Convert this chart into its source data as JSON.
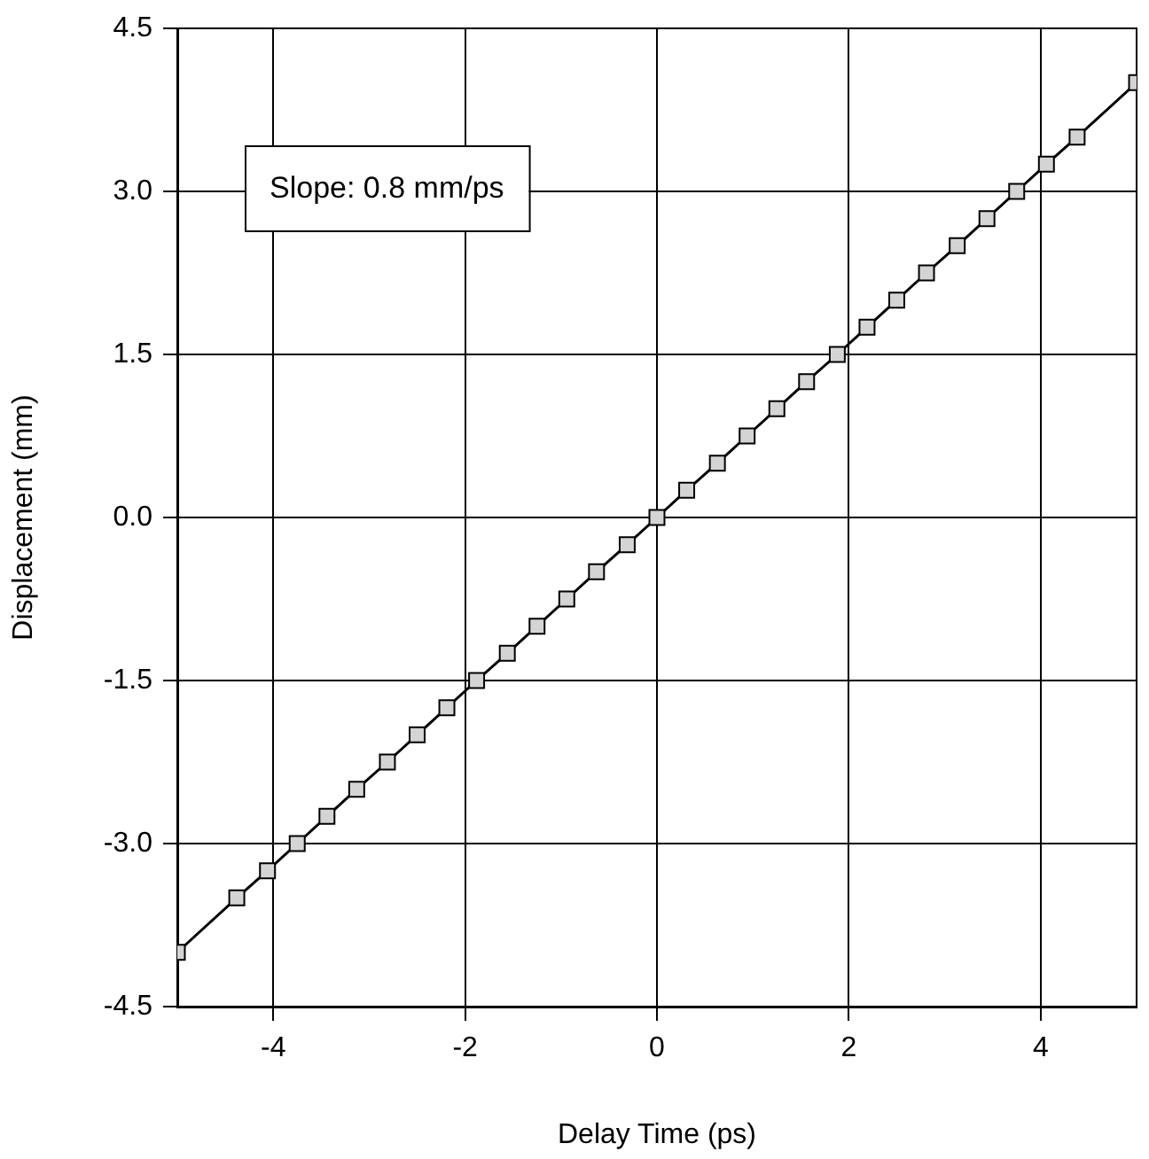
{
  "chart_data": {
    "type": "line",
    "xlabel": "Delay Time (ps)",
    "ylabel": "Displacement (mm)",
    "annotations": [
      "Slope: 0.8 mm/ps"
    ],
    "x": [
      -5,
      -4.38,
      -4.06,
      -3.75,
      -3.44,
      -3.13,
      -2.81,
      -2.5,
      -2.19,
      -1.88,
      -1.56,
      -1.25,
      -0.94,
      -0.63,
      -0.31,
      0,
      0.31,
      0.63,
      0.94,
      1.25,
      1.56,
      1.88,
      2.19,
      2.5,
      2.81,
      3.13,
      3.44,
      3.75,
      4.06,
      4.38,
      5
    ],
    "series": [
      {
        "color": "#000000",
        "values": [
          -4,
          -3.5,
          -3.25,
          -3,
          -2.75,
          -2.5,
          -2.25,
          -2,
          -1.75,
          -1.5,
          -1.25,
          -1,
          -0.75,
          -0.5,
          -0.25,
          0,
          0.25,
          0.5,
          0.75,
          1,
          1.25,
          1.5,
          1.75,
          2,
          2.25,
          2.5,
          2.75,
          3,
          3.25,
          3.5,
          4
        ]
      }
    ],
    "xlim": [
      -5,
      5
    ],
    "xticks": [
      -4,
      -2,
      0,
      2,
      4
    ],
    "ylim": [
      -4.5,
      4.5
    ],
    "yticks": [
      {
        "value": -4.5,
        "label": "-4.5"
      },
      {
        "value": -3,
        "label": "-3.0"
      },
      {
        "value": -1.5,
        "label": "-1.5"
      },
      {
        "value": 0,
        "label": "0.0"
      },
      {
        "value": 1.5,
        "label": "1.5"
      },
      {
        "value": 3,
        "label": "3.0"
      },
      {
        "value": 4.5,
        "label": "4.5"
      }
    ],
    "grid": true,
    "legend": false,
    "marker": "square",
    "line_style": "solid"
  }
}
